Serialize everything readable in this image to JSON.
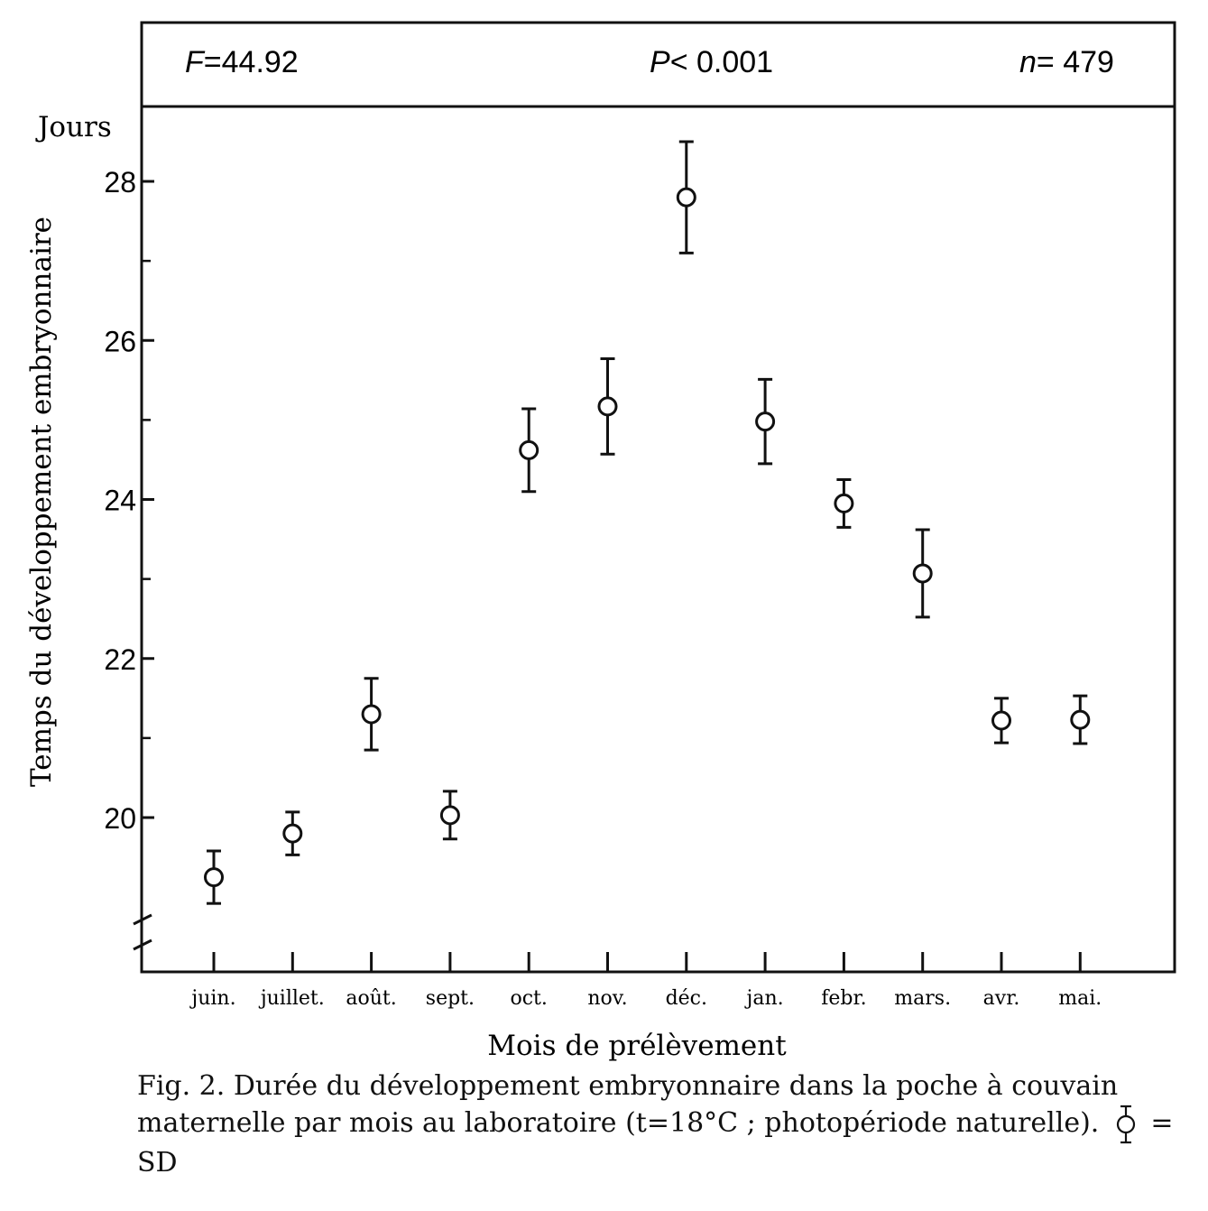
{
  "chart_data": {
    "type": "scatter",
    "subtype": "mean-with-error-bars",
    "stats": [
      {
        "label": "F",
        "value": "=44.92"
      },
      {
        "label": "P",
        "value": "< 0.001"
      },
      {
        "label": "n",
        "value": "= 479"
      }
    ],
    "y_unit_label": "Jours",
    "ylabel": "Temps du développement embryonnaire",
    "xlabel": "Mois de prélèvement",
    "ylim": [
      18.2,
      28.8
    ],
    "yticks": [
      20,
      22,
      24,
      26,
      28
    ],
    "y_minor_ticks": [
      21,
      23,
      25,
      27
    ],
    "axis_break": true,
    "grid": false,
    "categories": [
      "juin.",
      "juillet.",
      "août.",
      "sept.",
      "oct.",
      "nov.",
      "déc.",
      "jan.",
      "febr.",
      "mars.",
      "avr.",
      "mai."
    ],
    "series": [
      {
        "mean": [
          19.25,
          19.8,
          21.3,
          20.03,
          24.62,
          25.17,
          27.8,
          24.98,
          23.95,
          23.07,
          21.22,
          21.23
        ],
        "sd": [
          0.33,
          0.27,
          0.45,
          0.3,
          0.52,
          0.6,
          0.7,
          0.53,
          0.3,
          0.55,
          0.28,
          0.3
        ]
      }
    ]
  },
  "caption": {
    "text": "Fig. 2. Durée du développement embryonnaire dans la poche à couvain maternelle par mois au laboratoire (t=18°C ; photopériode naturelle).",
    "legend_text": "= SD",
    "legend_icon": "error-bar-circle-icon"
  }
}
